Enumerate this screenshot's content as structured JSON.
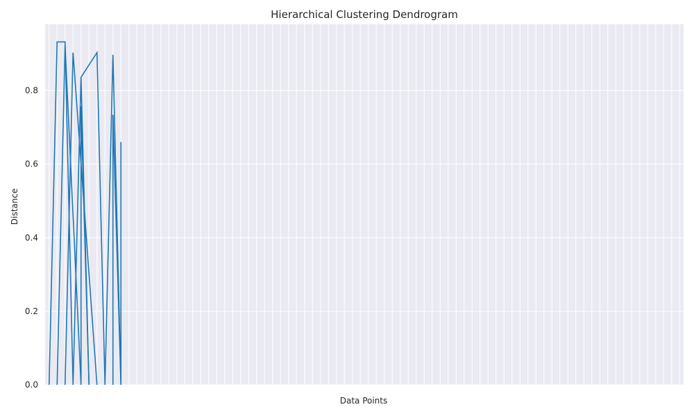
{
  "chart_data": {
    "type": "dendrogram",
    "title": "Hierarchical Clustering Dendrogram",
    "xlabel": "Data Points",
    "ylabel": "Distance",
    "ylim": [
      0,
      0.98
    ],
    "yticks": [
      0.0,
      0.2,
      0.4,
      0.6,
      0.8
    ],
    "ytick_labels": [
      "0.0",
      "0.2",
      "0.4",
      "0.6",
      "0.8"
    ],
    "grid": true,
    "leaf_count": 80,
    "colors": {
      "background": "#EAEAF2",
      "grid": "#FFFFFF",
      "above_threshold": "#1F77B4",
      "orange": "#FF7F0E",
      "green": "#2CA02C",
      "red": "#D62728",
      "purple": "#9467BD",
      "brown": "#8C564B",
      "pink": "#E377C2",
      "gray": "#7F7F7F",
      "olive": "#BCBD22",
      "cyan": "#17BECF"
    },
    "links": [
      {
        "x": [
          1,
          2,
          3,
          4
        ],
        "y": [
          0,
          0.932,
          0.932,
          0
        ],
        "color": "above_threshold"
      },
      {
        "x": [
          2,
          3,
          3,
          5
        ],
        "y": [
          0,
          0.922,
          0.922,
          0
        ],
        "color": "above_threshold"
      },
      {
        "x": [
          3,
          4,
          4,
          7
        ],
        "y": [
          0,
          0.903,
          0.903,
          0
        ],
        "color": "above_threshold"
      },
      {
        "x": [
          4,
          5,
          5,
          6
        ],
        "y": [
          0,
          0.836,
          0.836,
          0
        ],
        "color": "above_threshold"
      },
      {
        "x": [
          5,
          5,
          5,
          6
        ],
        "y": [
          0,
          0.757,
          0.757,
          0
        ],
        "color": "above_threshold"
      },
      {
        "x": [
          5,
          7,
          7,
          8
        ],
        "y": [
          0.836,
          0.903,
          0.903,
          0
        ],
        "color": "above_threshold"
      },
      {
        "x": [
          8,
          9,
          9,
          10
        ],
        "y": [
          0,
          0.897,
          0.897,
          0
        ],
        "color": "above_threshold"
      },
      {
        "x": [
          9,
          9,
          9,
          10
        ],
        "y": [
          0,
          0.734,
          0.734,
          0
        ],
        "color": "above_threshold"
      },
      {
        "x": [
          10,
          10,
          10,
          10
        ],
        "y": [
          0,
          0.66,
          0.66,
          0
        ],
        "color": "above_threshold"
      }
    ]
  }
}
